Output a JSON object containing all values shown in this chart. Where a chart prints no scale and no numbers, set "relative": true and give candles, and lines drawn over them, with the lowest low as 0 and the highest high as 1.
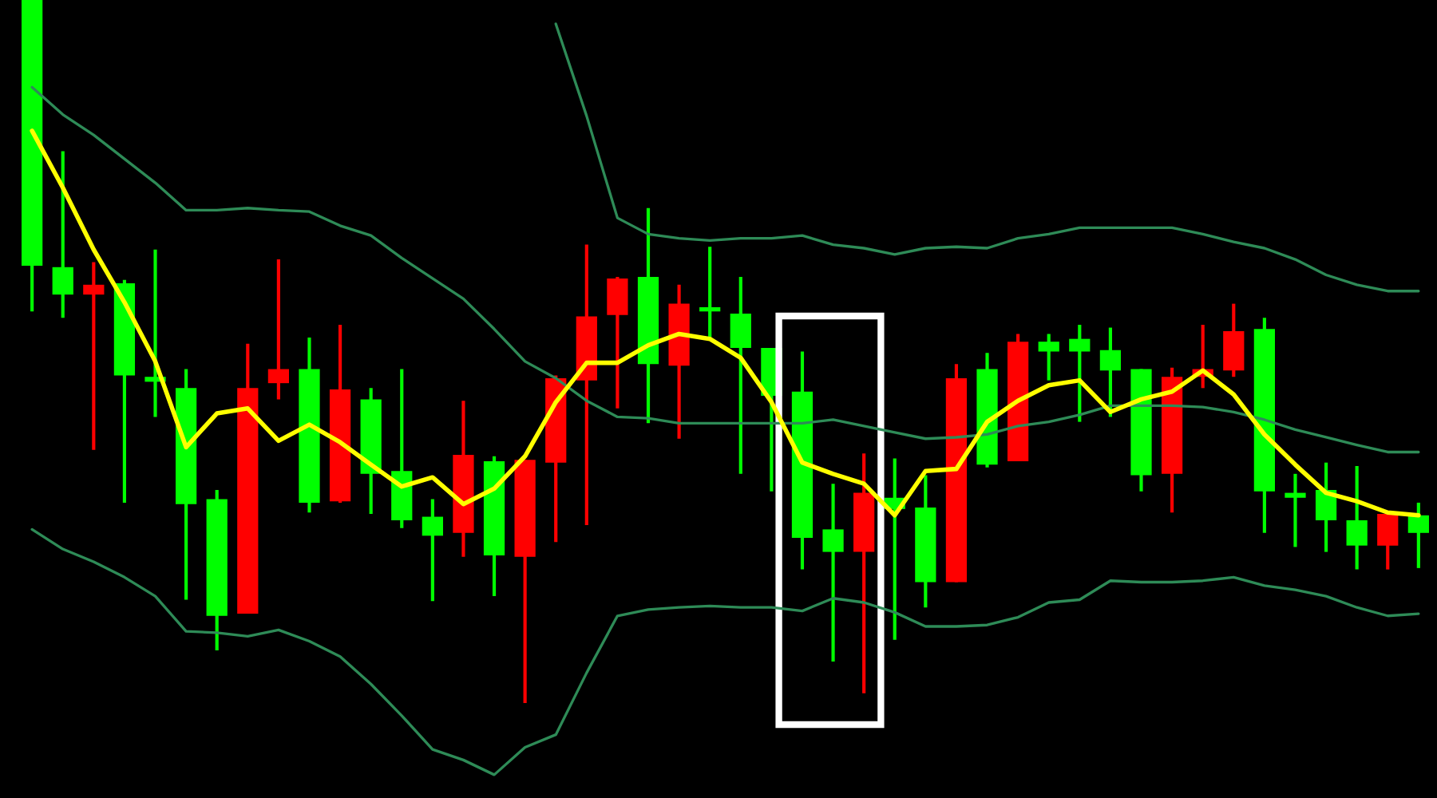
{
  "chart_data": {
    "type": "candlestick",
    "relative": true,
    "categories": [
      null,
      null,
      null,
      null,
      null,
      null,
      null,
      null,
      null,
      null,
      null,
      null,
      null,
      null,
      null,
      null,
      null,
      null,
      null,
      null,
      null,
      null,
      null,
      null,
      null,
      null,
      null,
      null,
      null,
      null,
      null,
      null,
      null,
      null,
      null,
      null,
      null,
      null,
      null,
      null,
      null,
      null,
      null,
      null,
      null,
      null
    ],
    "ohlc": [
      [
        1,
        1,
        0.557,
        0.622
      ],
      [
        0.62,
        0.785,
        0.548,
        0.581
      ],
      [
        0.581,
        0.627,
        0.36,
        0.595
      ],
      [
        0.597,
        0.602,
        0.285,
        0.466
      ],
      [
        0.464,
        0.645,
        0.407,
        0.457
      ],
      [
        0.448,
        0.475,
        0.147,
        0.283
      ],
      [
        0.29,
        0.303,
        0.075,
        0.124
      ],
      [
        0.127,
        0.511,
        0.127,
        0.448
      ],
      [
        0.455,
        0.631,
        0.432,
        0.475
      ],
      [
        0.475,
        0.52,
        0.271,
        0.285
      ],
      [
        0.287,
        0.538,
        0.285,
        0.446
      ],
      [
        0.432,
        0.448,
        0.269,
        0.326
      ],
      [
        0.33,
        0.475,
        0.249,
        0.26
      ],
      [
        0.265,
        0.29,
        0.145,
        0.238
      ],
      [
        0.242,
        0.43,
        0.208,
        0.353
      ],
      [
        0.344,
        0.351,
        0.152,
        0.21
      ],
      [
        0.208,
        0.346,
        0,
        0.346
      ],
      [
        0.342,
        0.466,
        0.229,
        0.462
      ],
      [
        0.459,
        0.652,
        0.253,
        0.55
      ],
      [
        0.552,
        0.606,
        0.419,
        0.604
      ],
      [
        0.606,
        0.704,
        0.398,
        0.482
      ],
      [
        0.48,
        0.595,
        0.376,
        0.568
      ],
      [
        0.563,
        0.649,
        0.52,
        0.557
      ],
      [
        0.554,
        0.606,
        0.326,
        0.505
      ],
      [
        0.505,
        0.505,
        0.301,
        0.437
      ],
      [
        0.443,
        0.5,
        0.19,
        0.235
      ],
      [
        0.247,
        0.312,
        0.059,
        0.215
      ],
      [
        0.215,
        0.355,
        0.014,
        0.299
      ],
      [
        0.292,
        0.348,
        0.09,
        0.276
      ],
      [
        0.278,
        0.324,
        0.136,
        0.172
      ],
      [
        0.172,
        0.482,
        0.172,
        0.462
      ],
      [
        0.475,
        0.498,
        0.335,
        0.339
      ],
      [
        0.344,
        0.525,
        0.344,
        0.514
      ],
      [
        0.514,
        0.525,
        0.459,
        0.5
      ],
      [
        0.518,
        0.538,
        0.4,
        0.5
      ],
      [
        0.502,
        0.534,
        0.407,
        0.473
      ],
      [
        0.475,
        0.475,
        0.301,
        0.324
      ],
      [
        0.326,
        0.477,
        0.271,
        0.464
      ],
      [
        0.464,
        0.538,
        0.448,
        0.475
      ],
      [
        0.473,
        0.568,
        0.464,
        0.529
      ],
      [
        0.532,
        0.548,
        0.242,
        0.301
      ],
      [
        0.299,
        0.326,
        0.222,
        0.292
      ],
      [
        0.303,
        0.342,
        0.215,
        0.26
      ],
      [
        0.26,
        0.337,
        0.19,
        0.224
      ],
      [
        0.224,
        0.269,
        0.19,
        0.269
      ],
      [
        0.267,
        0.285,
        0.192,
        0.242
      ]
    ],
    "colors": [
      "#00ff00",
      "#00ff00",
      "#ff0000",
      "#00ff00",
      "#00ff00",
      "#00ff00",
      "#00ff00",
      "#ff0000",
      "#ff0000",
      "#00ff00",
      "#ff0000",
      "#00ff00",
      "#00ff00",
      "#00ff00",
      "#ff0000",
      "#00ff00",
      "#ff0000",
      "#ff0000",
      "#ff0000",
      "#ff0000",
      "#00ff00",
      "#ff0000",
      "#00ff00",
      "#00ff00",
      "#00ff00",
      "#00ff00",
      "#00ff00",
      "#ff0000",
      "#00ff00",
      "#00ff00",
      "#ff0000",
      "#00ff00",
      "#ff0000",
      "#00ff00",
      "#00ff00",
      "#00ff00",
      "#00ff00",
      "#ff0000",
      "#ff0000",
      "#ff0000",
      "#00ff00",
      "#00ff00",
      "#00ff00",
      "#00ff00",
      "#ff0000",
      "#00ff00"
    ],
    "series": [
      {
        "type": "line",
        "color": "#2e8b57",
        "values": [
          null,
          null,
          null,
          null,
          null,
          null,
          null,
          null,
          null,
          null,
          null,
          null,
          null,
          null,
          null,
          null,
          null,
          0.966,
          0.835,
          0.69,
          0.667,
          0.661,
          0.658,
          0.661,
          0.661,
          0.665,
          0.652,
          0.647,
          0.638,
          0.647,
          0.649,
          0.647,
          0.661,
          0.667,
          0.676,
          0.676,
          0.676,
          0.676,
          0.667,
          0.656,
          0.647,
          0.631,
          0.609,
          0.595,
          0.586,
          0.586
        ]
      },
      {
        "type": "line",
        "color": "#2e8b57",
        "values": [
          0.876,
          0.837,
          0.808,
          0.774,
          0.74,
          0.701,
          0.701,
          0.704,
          0.701,
          0.699,
          0.679,
          0.665,
          0.633,
          0.604,
          0.575,
          0.532,
          0.486,
          0.462,
          0.43,
          0.407,
          0.405,
          0.398,
          0.398,
          0.398,
          0.398,
          0.398,
          0.403,
          0.394,
          0.385,
          0.376,
          0.378,
          0.382,
          0.394,
          0.4,
          0.41,
          0.423,
          0.423,
          0.423,
          0.421,
          0.414,
          0.403,
          0.389,
          0.378,
          0.367,
          0.357,
          0.357
        ]
      },
      {
        "type": "line",
        "color": "#2e8b57",
        "values": [
          0.247,
          0.219,
          0.201,
          0.179,
          0.152,
          0.102,
          0.1,
          0.095,
          0.104,
          0.088,
          0.066,
          0.027,
          -0.018,
          -0.066,
          -0.081,
          -0.102,
          -0.063,
          -0.045,
          0.043,
          0.124,
          0.133,
          0.136,
          0.138,
          0.136,
          0.136,
          0.131,
          0.149,
          0.143,
          0.129,
          0.109,
          0.109,
          0.111,
          0.122,
          0.143,
          0.147,
          0.174,
          0.172,
          0.172,
          0.174,
          0.179,
          0.167,
          0.161,
          0.152,
          0.136,
          0.124,
          0.127
        ]
      },
      {
        "type": "line",
        "color": "#ffff00",
        "values": [
          0.814,
          0.733,
          0.645,
          0.57,
          0.486,
          0.364,
          0.412,
          0.419,
          0.373,
          0.396,
          0.371,
          0.339,
          0.308,
          0.321,
          0.283,
          0.305,
          0.351,
          0.428,
          0.484,
          0.484,
          0.509,
          0.525,
          0.518,
          0.491,
          0.428,
          0.342,
          0.326,
          0.312,
          0.267,
          0.33,
          0.333,
          0.4,
          0.43,
          0.452,
          0.459,
          0.414,
          0.432,
          0.443,
          0.473,
          0.439,
          0.382,
          0.339,
          0.299,
          0.287,
          0.271,
          0.267
        ]
      }
    ]
  }
}
